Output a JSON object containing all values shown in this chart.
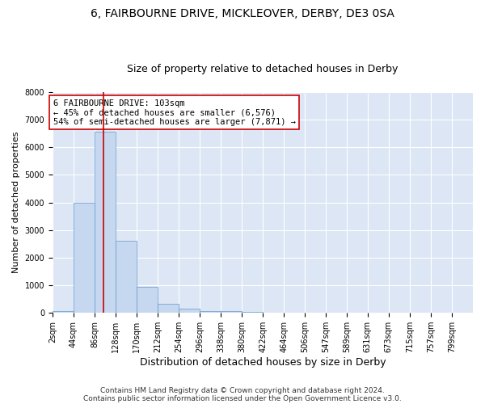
{
  "title1": "6, FAIRBOURNE DRIVE, MICKLEOVER, DERBY, DE3 0SA",
  "title2": "Size of property relative to detached houses in Derby",
  "xlabel": "Distribution of detached houses by size in Derby",
  "ylabel": "Number of detached properties",
  "footnote1": "Contains HM Land Registry data © Crown copyright and database right 2024.",
  "footnote2": "Contains public sector information licensed under the Open Government Licence v3.0.",
  "bin_edges": [
    2,
    44,
    86,
    128,
    170,
    212,
    254,
    296,
    338,
    380,
    422,
    464,
    506,
    547,
    589,
    631,
    673,
    715,
    757,
    799,
    841
  ],
  "bar_heights": [
    75,
    4000,
    6576,
    2600,
    950,
    330,
    150,
    75,
    75,
    50,
    0,
    0,
    0,
    0,
    0,
    0,
    0,
    0,
    0,
    0
  ],
  "bar_color": "#c5d8f0",
  "bar_edge_color": "#6699cc",
  "red_line_x": 103,
  "annotation_line1": "6 FAIRBOURNE DRIVE: 103sqm",
  "annotation_line2": "← 45% of detached houses are smaller (6,576)",
  "annotation_line3": "54% of semi-detached houses are larger (7,871) →",
  "annotation_box_color": "#ffffff",
  "annotation_border_color": "#cc0000",
  "ylim": [
    0,
    8000
  ],
  "yticks": [
    0,
    1000,
    2000,
    3000,
    4000,
    5000,
    6000,
    7000,
    8000
  ],
  "background_color": "#dce6f5",
  "grid_color": "#ffffff",
  "title1_fontsize": 10,
  "title2_fontsize": 9,
  "xlabel_fontsize": 9,
  "ylabel_fontsize": 8,
  "tick_fontsize": 7,
  "annotation_fontsize": 7.5,
  "footnote_fontsize": 6.5
}
